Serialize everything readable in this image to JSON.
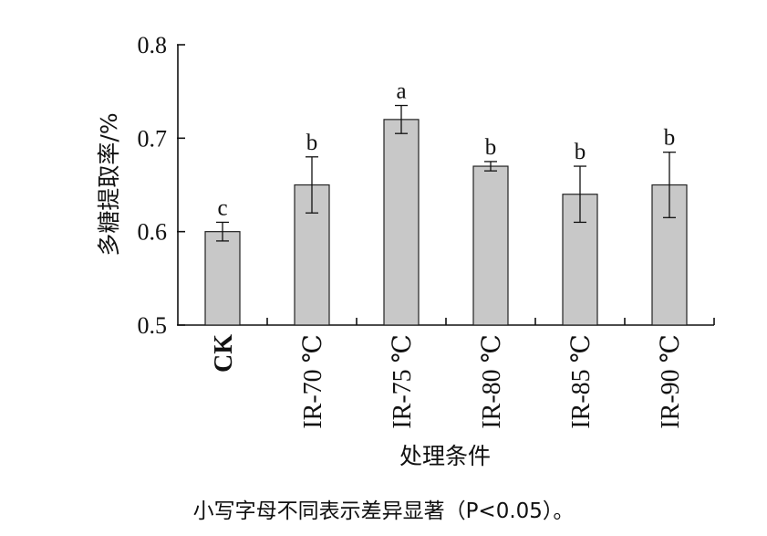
{
  "chart_data": {
    "type": "bar",
    "categories": [
      "CK",
      "IR-70 ℃",
      "IR-75 ℃",
      "IR-80 ℃",
      "IR-85 ℃",
      "IR-90 ℃"
    ],
    "series": [
      {
        "values": [
          0.6,
          0.65,
          0.72,
          0.67,
          0.64,
          0.65
        ],
        "error": [
          0.01,
          0.03,
          0.015,
          0.005,
          0.03,
          0.035
        ],
        "significance": [
          "c",
          "b",
          "a",
          "b",
          "b",
          "b"
        ],
        "color": "#c8c8c8"
      }
    ],
    "xlabel": "处理条件",
    "ylabel": "多糖提取率/%",
    "ylim": [
      0.5,
      0.8
    ],
    "yticks": [
      "0.5",
      "0.6",
      "0.7",
      "0.8"
    ],
    "grid": false
  },
  "caption": "小写字母不同表示差异显著（P<0.05）。"
}
